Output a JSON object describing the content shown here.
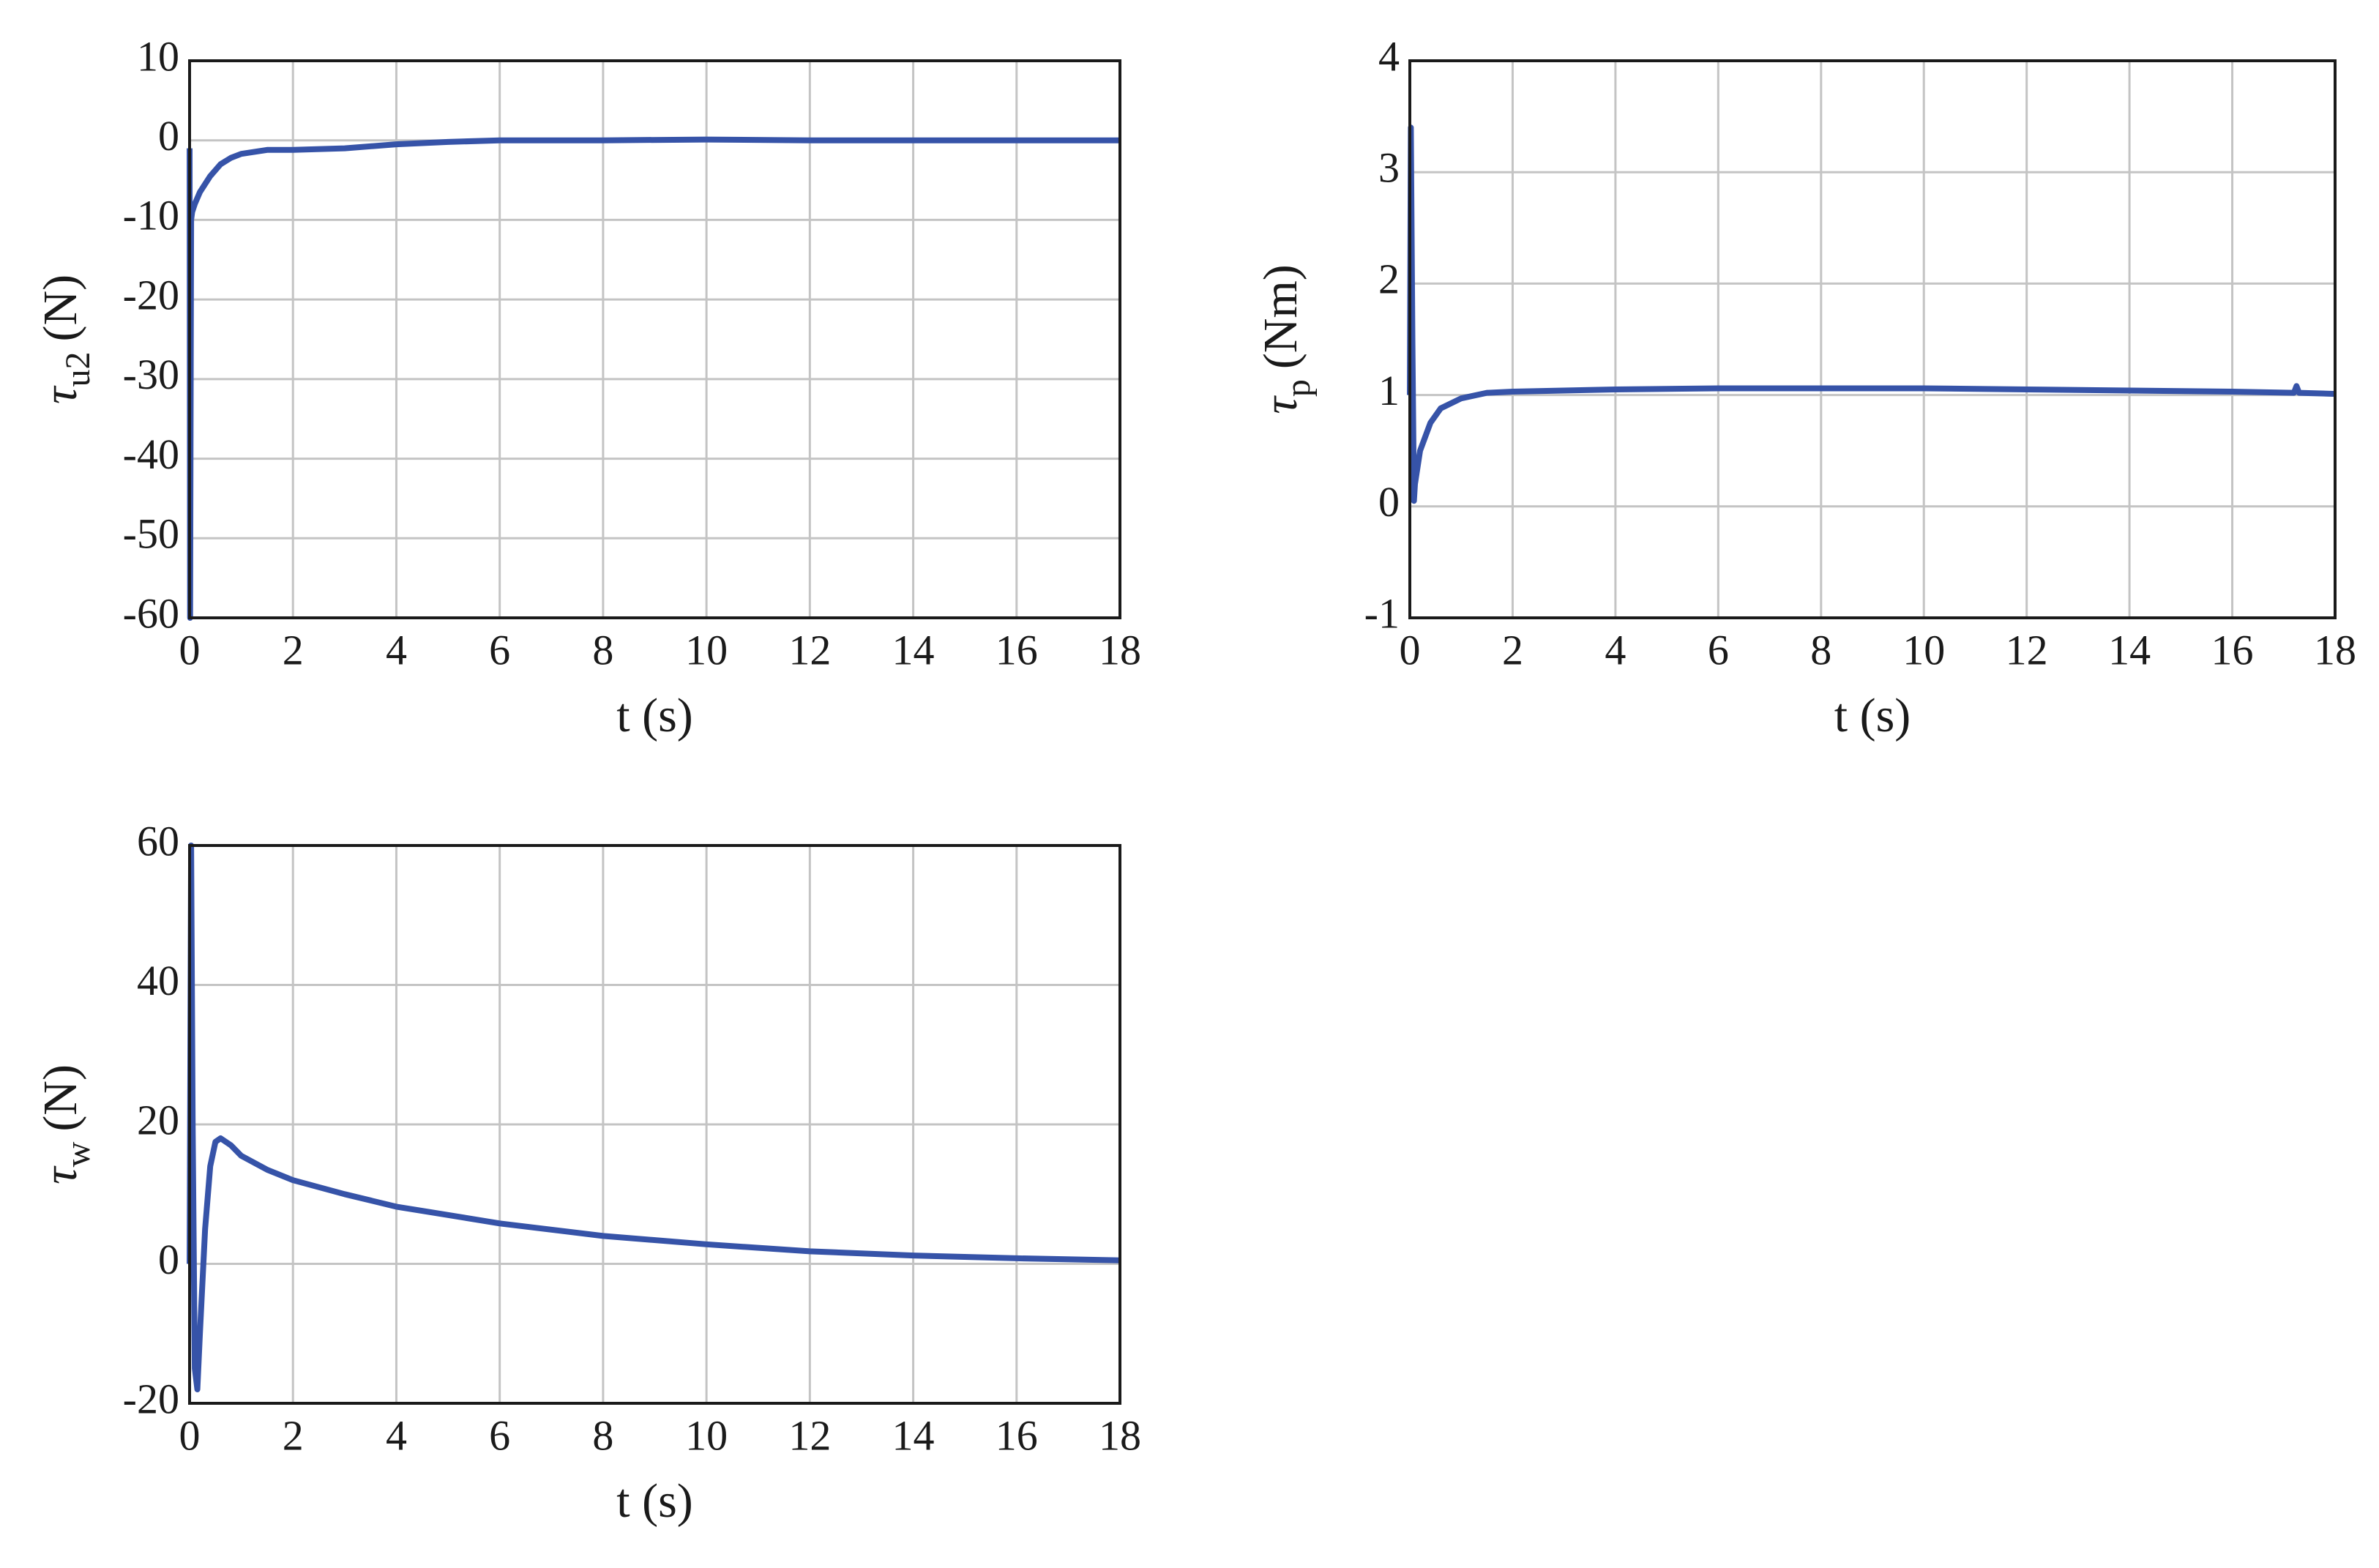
{
  "chart_data": [
    {
      "type": "line",
      "color": "#3653a8",
      "xlabel": "t (s)",
      "ylabel": {
        "symbol": "τ",
        "subscript": "u2",
        "unit": "(N)"
      },
      "xlim": [
        0,
        18
      ],
      "xticks": [
        0,
        2,
        4,
        6,
        8,
        10,
        12,
        14,
        16,
        18
      ],
      "ylim": [
        -60,
        10
      ],
      "yticks": [
        -60,
        -50,
        -40,
        -30,
        -20,
        -10,
        0,
        10
      ],
      "grid": true,
      "x": [
        0,
        0.01,
        0.03,
        0.05,
        0.1,
        0.2,
        0.4,
        0.6,
        0.8,
        1,
        1.5,
        2,
        3,
        4,
        5,
        6,
        8,
        10,
        12,
        14,
        16,
        18
      ],
      "values": [
        -1,
        -60,
        -10,
        -9,
        -8,
        -6.5,
        -4.5,
        -3,
        -2.2,
        -1.7,
        -1.2,
        -1.2,
        -1,
        -0.5,
        -0.2,
        0,
        0,
        0.1,
        0,
        0,
        0,
        0
      ]
    },
    {
      "type": "line",
      "color": "#3653a8",
      "xlabel": "t (s)",
      "ylabel": {
        "symbol": "τ",
        "subscript": "p",
        "unit": "(Nm)"
      },
      "xlim": [
        0,
        18
      ],
      "xticks": [
        0,
        2,
        4,
        6,
        8,
        10,
        12,
        14,
        16,
        18
      ],
      "ylim": [
        -1,
        4
      ],
      "yticks": [
        -1,
        0,
        1,
        2,
        3,
        4
      ],
      "grid": true,
      "x": [
        0,
        0.02,
        0.05,
        0.08,
        0.1,
        0.2,
        0.4,
        0.6,
        1,
        1.5,
        2,
        4,
        6,
        8,
        10,
        12,
        14,
        16,
        17.2,
        17.25,
        17.3,
        18
      ],
      "values": [
        1,
        3.4,
        1.5,
        0.05,
        0.2,
        0.5,
        0.75,
        0.88,
        0.97,
        1.02,
        1.03,
        1.05,
        1.06,
        1.06,
        1.06,
        1.05,
        1.04,
        1.03,
        1.02,
        1.08,
        1.02,
        1.01
      ]
    },
    {
      "type": "line",
      "color": "#3653a8",
      "xlabel": "t (s)",
      "ylabel": {
        "symbol": "τ",
        "subscript": "w",
        "unit": "(N)"
      },
      "xlim": [
        0,
        18
      ],
      "xticks": [
        0,
        2,
        4,
        6,
        8,
        10,
        12,
        14,
        16,
        18
      ],
      "ylim": [
        -20,
        60
      ],
      "yticks": [
        -20,
        0,
        20,
        40,
        60
      ],
      "grid": true,
      "x": [
        0,
        0.03,
        0.06,
        0.1,
        0.15,
        0.2,
        0.3,
        0.4,
        0.5,
        0.6,
        0.8,
        1,
        1.5,
        2,
        3,
        4,
        5,
        6,
        8,
        10,
        12,
        14,
        16,
        18
      ],
      "values": [
        0,
        60,
        20,
        -15,
        -18,
        -10,
        5,
        14,
        17.5,
        18,
        17,
        15.5,
        13.5,
        12,
        10,
        8.2,
        7,
        5.8,
        4,
        2.8,
        1.8,
        1.2,
        0.8,
        0.5
      ]
    }
  ]
}
